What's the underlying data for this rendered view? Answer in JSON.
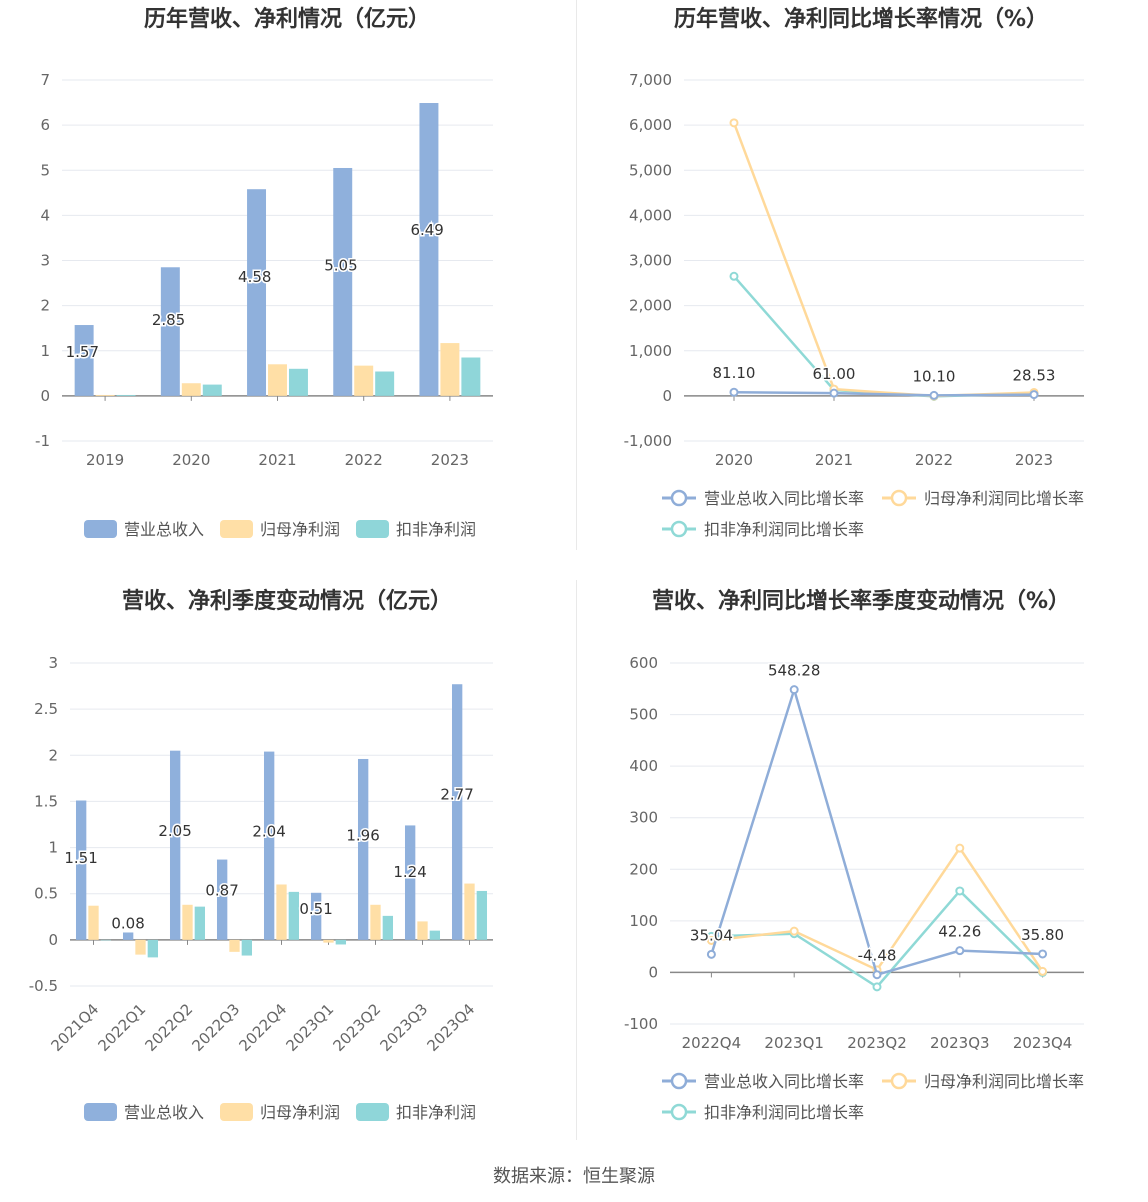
{
  "colors": {
    "revenue": "#8fb0dc",
    "net_profit": "#ffdfa6",
    "deducted_profit": "#8fd6d9",
    "revenue_line": "#8fadd8",
    "net_line": "#ffd99a",
    "deducted_line": "#8fd9d6"
  },
  "source": "数据来源：恒生聚源",
  "charts": [
    {
      "id": "annual-amount",
      "chart_data": {
        "type": "bar",
        "title": "历年营收、净利情况（亿元）",
        "categories": [
          "2019",
          "2020",
          "2021",
          "2022",
          "2023"
        ],
        "series": [
          {
            "name": "营业总收入",
            "values": [
              1.57,
              2.85,
              4.58,
              5.05,
              6.49
            ],
            "labels": [
              "1.57",
              "2.85",
              "4.58",
              "5.05",
              "6.49"
            ]
          },
          {
            "name": "归母净利润",
            "values": [
              0.02,
              0.28,
              0.7,
              0.67,
              1.17
            ]
          },
          {
            "name": "扣非净利润",
            "values": [
              0.02,
              0.25,
              0.6,
              0.54,
              0.85
            ]
          }
        ],
        "ylim": [
          -1,
          7
        ],
        "yticks": [
          "-1",
          "0",
          "1",
          "2",
          "3",
          "4",
          "5",
          "6",
          "7"
        ],
        "grid": true,
        "legend": "bottom"
      }
    },
    {
      "id": "annual-growth",
      "chart_data": {
        "type": "line",
        "title": "历年营收、净利同比增长率情况（%）",
        "categories": [
          "2020",
          "2021",
          "2022",
          "2023"
        ],
        "series": [
          {
            "name": "营业总收入同比增长率",
            "values": [
              81.1,
              61.0,
              10.1,
              28.53
            ],
            "labels": [
              "81.10",
              "61.00",
              "10.10",
              "28.53"
            ]
          },
          {
            "name": "归母净利润同比增长率",
            "values": [
              6050,
              150,
              -4,
              75
            ]
          },
          {
            "name": "扣非净利润同比增长率",
            "values": [
              2650,
              130,
              -10,
              55
            ]
          }
        ],
        "ylim": [
          -1000,
          7000
        ],
        "yticks": [
          "-1,000",
          "0",
          "1,000",
          "2,000",
          "3,000",
          "4,000",
          "5,000",
          "6,000",
          "7,000"
        ],
        "grid": true,
        "legend": "bottom"
      }
    },
    {
      "id": "quarterly-amount",
      "chart_data": {
        "type": "bar",
        "title": "营收、净利季度变动情况（亿元）",
        "categories": [
          "2021Q4",
          "2022Q1",
          "2022Q2",
          "2022Q3",
          "2022Q4",
          "2023Q1",
          "2023Q2",
          "2023Q3",
          "2023Q4"
        ],
        "series": [
          {
            "name": "营业总收入",
            "values": [
              1.51,
              0.08,
              2.05,
              0.87,
              2.04,
              0.51,
              1.96,
              1.24,
              2.77
            ],
            "labels": [
              "1.51",
              "0.08",
              "2.05",
              "0.87",
              "2.04",
              "0.51",
              "1.96",
              "1.24",
              "2.77"
            ]
          },
          {
            "name": "归母净利润",
            "values": [
              0.37,
              -0.16,
              0.38,
              -0.13,
              0.6,
              -0.03,
              0.38,
              0.2,
              0.61
            ]
          },
          {
            "name": "扣非净利润",
            "values": [
              0.0,
              -0.19,
              0.36,
              -0.17,
              0.52,
              -0.05,
              0.26,
              0.1,
              0.53
            ]
          }
        ],
        "ylim": [
          -0.5,
          3
        ],
        "yticks": [
          "-0.5",
          "0",
          "0.5",
          "1",
          "1.5",
          "2",
          "2.5",
          "3"
        ],
        "grid": true,
        "legend": "bottom"
      }
    },
    {
      "id": "quarterly-growth",
      "chart_data": {
        "type": "line",
        "title": "营收、净利同比增长率季度变动情况（%）",
        "categories": [
          "2022Q4",
          "2023Q1",
          "2023Q2",
          "2023Q3",
          "2023Q4"
        ],
        "series": [
          {
            "name": "营业总收入同比增长率",
            "values": [
              35.04,
              548.28,
              -4.48,
              42.26,
              35.8
            ],
            "labels": [
              "35.04",
              "548.28",
              "-4.48",
              "42.26",
              "35.80"
            ]
          },
          {
            "name": "归母净利润同比增长率",
            "values": [
              62,
              80,
              5,
              241,
              2
            ]
          },
          {
            "name": "扣非净利润同比增长率",
            "values": [
              70,
              75,
              -28,
              158,
              0
            ]
          }
        ],
        "ylim": [
          -100,
          600
        ],
        "yticks": [
          "-100",
          "0",
          "100",
          "200",
          "300",
          "400",
          "500",
          "600"
        ],
        "grid": true,
        "legend": "bottom"
      }
    }
  ]
}
